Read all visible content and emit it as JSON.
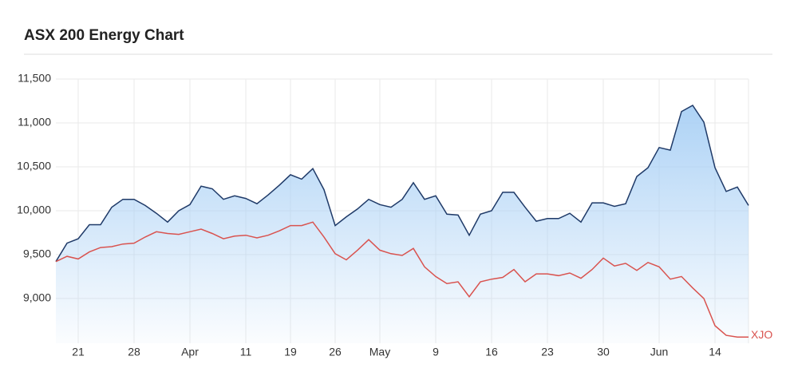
{
  "chart_data": {
    "type": "line",
    "title": "ASX 200 Energy Chart",
    "categories": [
      null,
      null,
      "21",
      null,
      null,
      null,
      null,
      "28",
      null,
      null,
      null,
      null,
      "Apr",
      null,
      null,
      null,
      null,
      "11",
      null,
      null,
      null,
      "19",
      null,
      null,
      null,
      "26",
      null,
      null,
      null,
      "May",
      null,
      null,
      null,
      null,
      "9",
      null,
      null,
      null,
      null,
      "16",
      null,
      null,
      null,
      null,
      "23",
      null,
      null,
      null,
      null,
      "30",
      null,
      null,
      null,
      null,
      "Jun",
      null,
      null,
      null,
      null,
      "14",
      null,
      null,
      null
    ],
    "series": [
      {
        "color": "#1f3a68",
        "fill": true,
        "values": [
          9420,
          9630,
          9680,
          9840,
          9840,
          10040,
          10130,
          10130,
          10060,
          9970,
          9870,
          10000,
          10070,
          10280,
          10250,
          10130,
          10170,
          10140,
          10080,
          10180,
          10290,
          10410,
          10360,
          10480,
          10240,
          9830,
          9930,
          10020,
          10130,
          10070,
          10040,
          10130,
          10320,
          10130,
          10170,
          9960,
          9950,
          9720,
          9960,
          10000,
          10210,
          10210,
          10040,
          9880,
          9910,
          9910,
          9970,
          9870,
          10090,
          10090,
          10050,
          10080,
          10390,
          10490,
          10720,
          10690,
          11130,
          11200,
          11010,
          10490,
          10220,
          10270,
          10060
        ]
      },
      {
        "name": "XJO",
        "color": "#d9534f",
        "fill": false,
        "values": [
          9420,
          9480,
          9450,
          9530,
          9580,
          9590,
          9620,
          9630,
          9700,
          9760,
          9740,
          9730,
          9760,
          9790,
          9740,
          9680,
          9710,
          9720,
          9690,
          9720,
          9770,
          9830,
          9830,
          9870,
          9700,
          9510,
          9440,
          9550,
          9670,
          9550,
          9510,
          9490,
          9570,
          9360,
          9250,
          9170,
          9190,
          9020,
          9190,
          9220,
          9240,
          9330,
          9190,
          9280,
          9280,
          9260,
          9290,
          9230,
          9330,
          9460,
          9370,
          9400,
          9320,
          9410,
          9360,
          9220,
          9250,
          9120,
          9000,
          8690,
          8580,
          8560,
          8560
        ]
      }
    ],
    "ylim": [
      8490,
      11500
    ],
    "yticks": [
      {
        "value": 9000,
        "label": "9,000"
      },
      {
        "value": 9500,
        "label": "9,500"
      },
      {
        "value": 10000,
        "label": "10,000"
      },
      {
        "value": 10500,
        "label": "10,500"
      },
      {
        "value": 11000,
        "label": "11,000"
      },
      {
        "value": 11500,
        "label": "11,500"
      }
    ],
    "grid": true
  }
}
